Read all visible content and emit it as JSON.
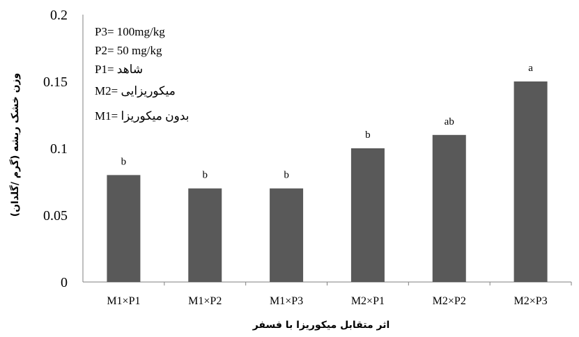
{
  "chart_data": {
    "type": "bar",
    "categories": [
      "M1×P1",
      "M1×P2",
      "M1×P3",
      "M2×P1",
      "M2×P2",
      "M2×P3"
    ],
    "values": [
      0.08,
      0.07,
      0.07,
      0.1,
      0.11,
      0.15
    ],
    "significance_letters": [
      "b",
      "b",
      "b",
      "b",
      "ab",
      "a"
    ],
    "ylabel": "وزن خشک ریشه (گرم /گلدان)",
    "xlabel": "اثر متقابل میکوریزا با فسفر",
    "ylim": [
      0,
      0.2
    ],
    "yticks": [
      "0",
      "0.05",
      "0.1",
      "0.15",
      "0.2"
    ],
    "bar_color": "#595959",
    "grid": false,
    "annotations": [
      "P3= 100mg/kg",
      "P2= 50 mg/kg",
      "P1= شاهد",
      "M2= میکوریزایی",
      "M1= بدون میکوریزا"
    ]
  }
}
